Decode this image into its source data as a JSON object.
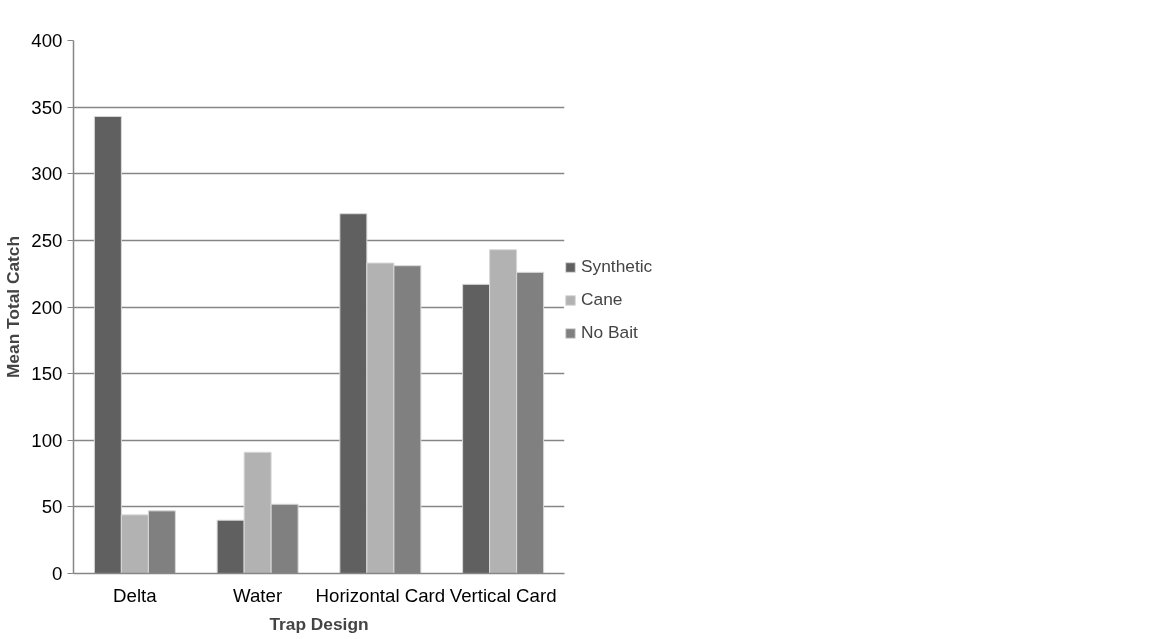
{
  "chart_data": {
    "type": "bar",
    "xlabel": "Trap Design",
    "ylabel": "Mean Total Catch",
    "categories": [
      "Delta",
      "Water",
      "Horizontal Card",
      "Vertical Card"
    ],
    "series": [
      {
        "name": "Synthetic",
        "color": "#606060",
        "values": [
          343,
          40,
          270,
          217
        ]
      },
      {
        "name": "Cane",
        "color": "#b2b2b2",
        "values": [
          44,
          91,
          233,
          243
        ]
      },
      {
        "name": "No Bait",
        "color": "#808080",
        "values": [
          47,
          52,
          231,
          226
        ]
      }
    ],
    "ylim": [
      0,
      400
    ],
    "yticks": [
      0,
      50,
      100,
      150,
      200,
      250,
      300,
      350,
      400
    ],
    "grid": "y",
    "legend": "right"
  }
}
